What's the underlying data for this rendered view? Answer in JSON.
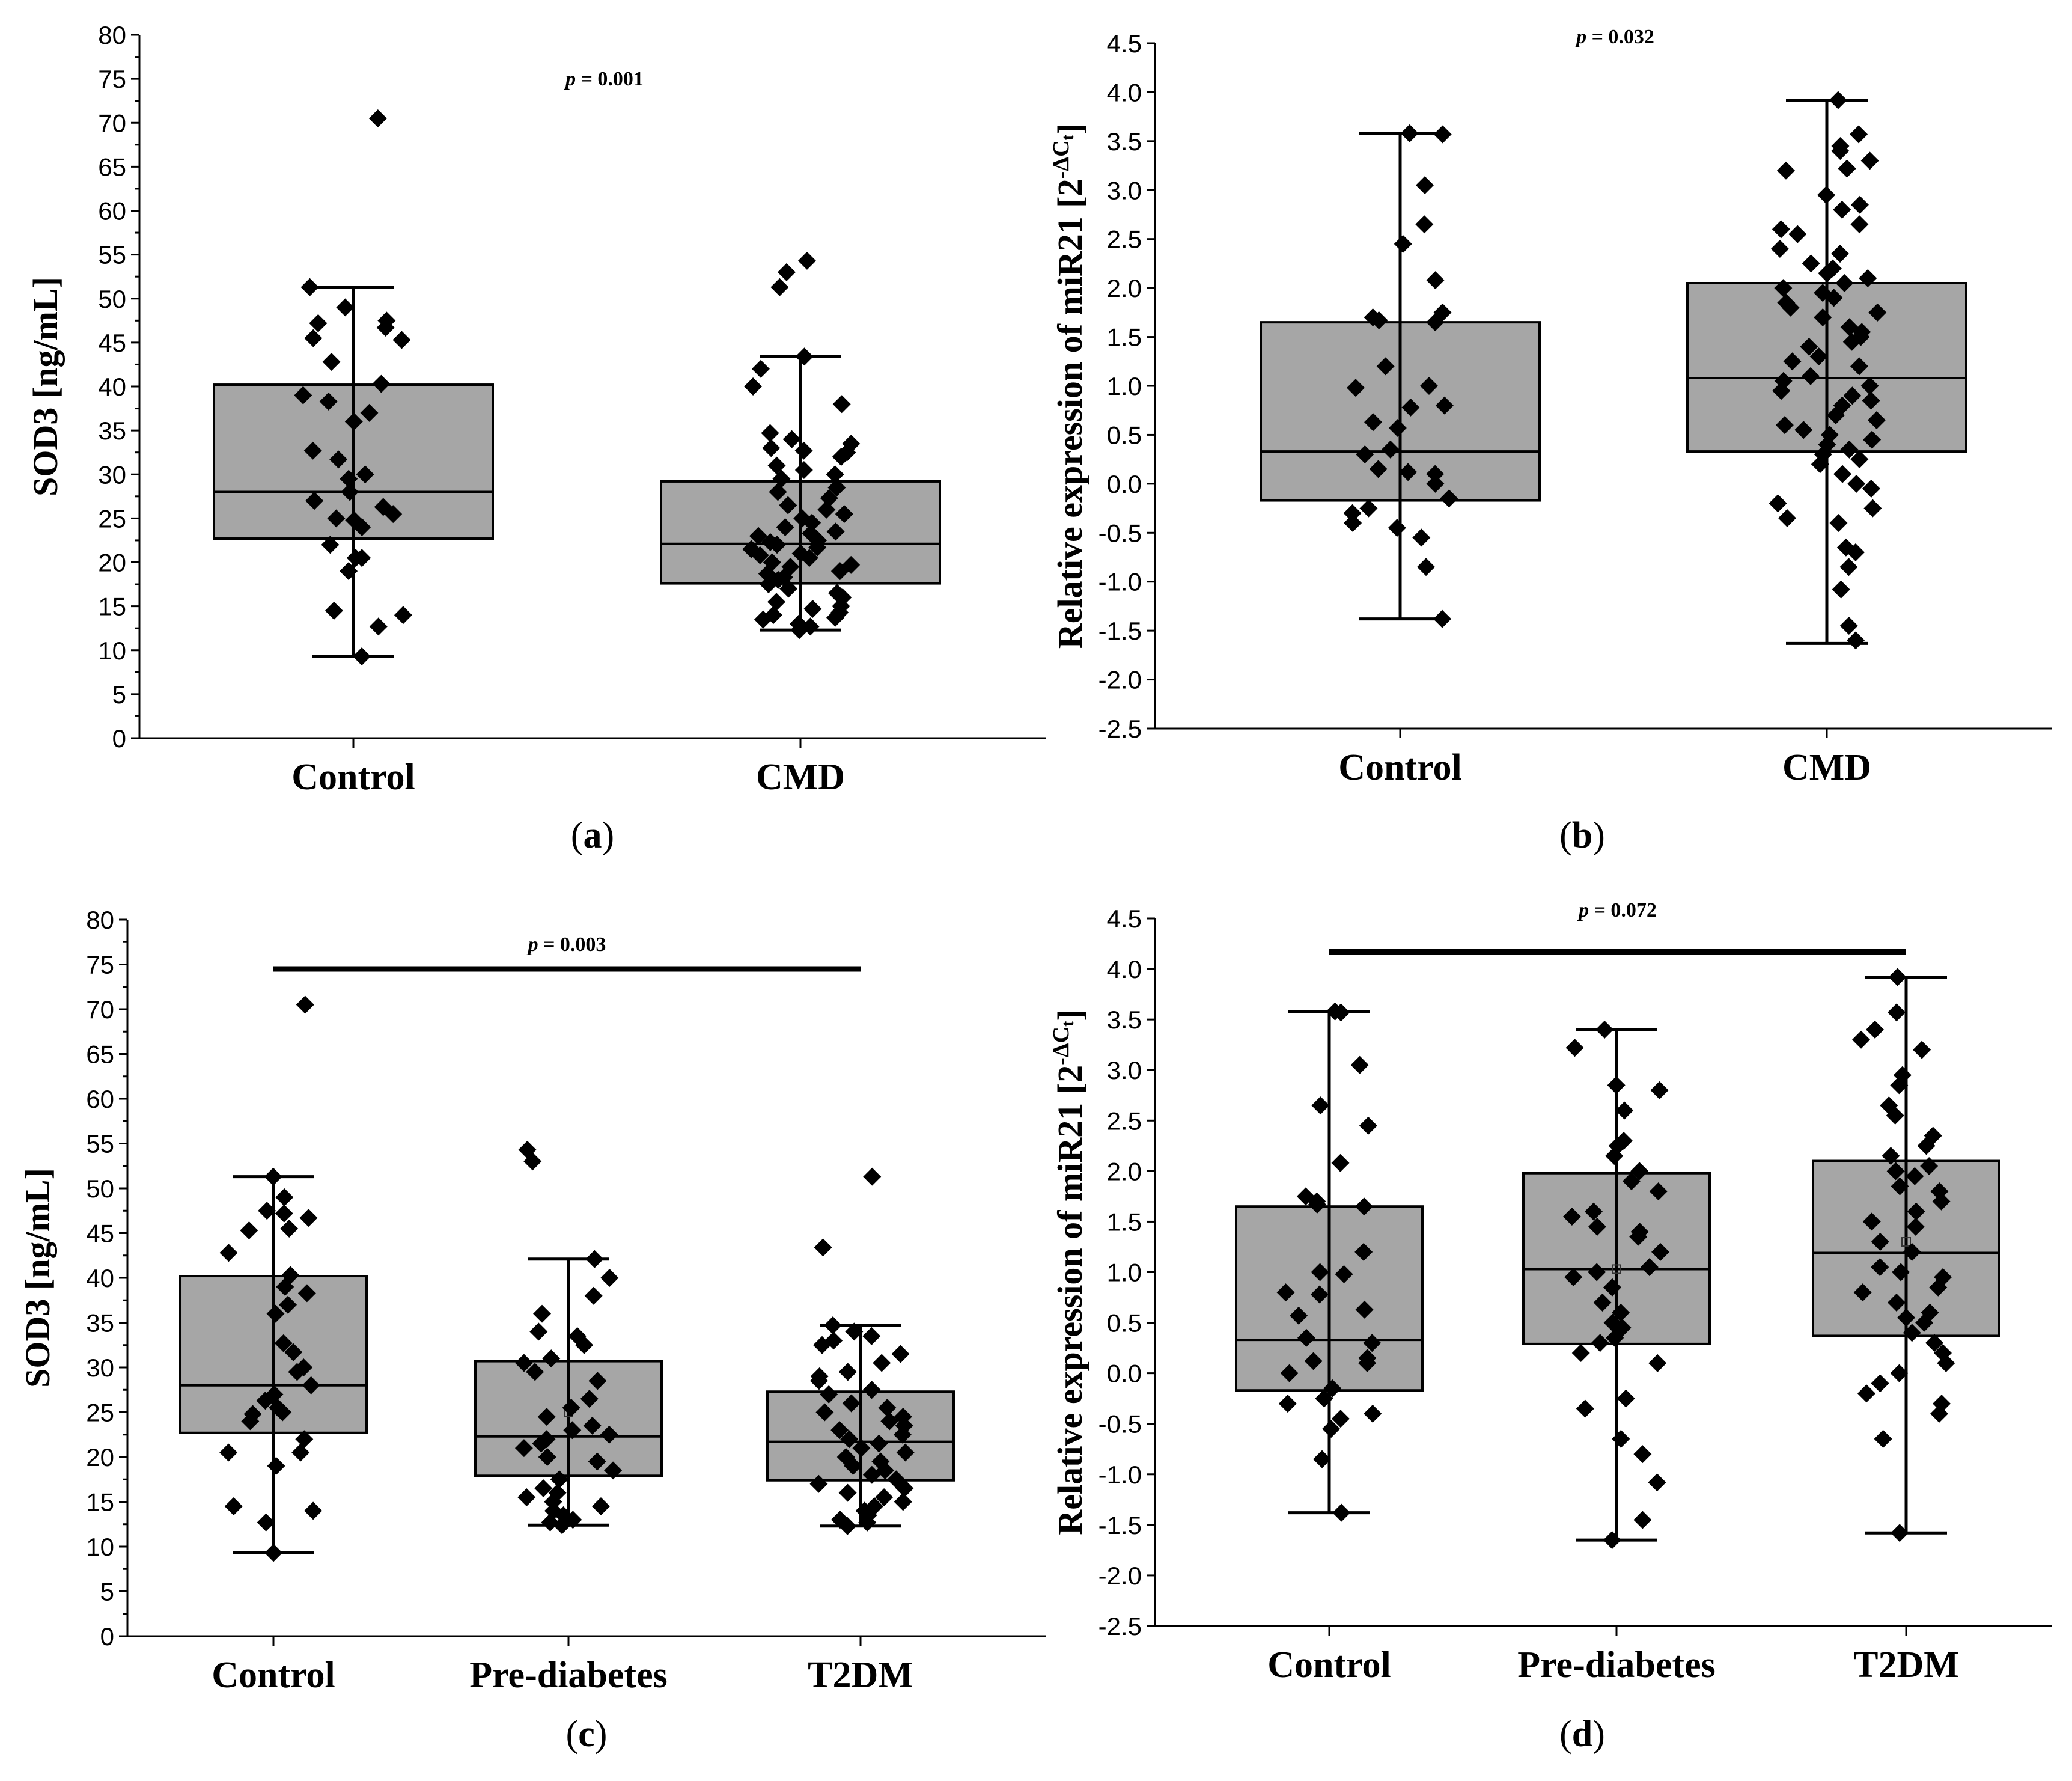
{
  "chart_data": [
    {
      "type": "box",
      "panel": "(a)",
      "ylabel": "SOD3 [ng/mL]",
      "ylim": [
        0,
        80
      ],
      "yticks": [
        0,
        5,
        10,
        15,
        20,
        25,
        30,
        35,
        40,
        45,
        50,
        55,
        60,
        65,
        70,
        75,
        80
      ],
      "ytick_labels": [
        "0",
        "5",
        "10",
        "15",
        "20",
        "25",
        "30",
        "35",
        "40",
        "45",
        "50",
        "55",
        "60",
        "65",
        "70",
        "75",
        "80"
      ],
      "minor_ticks": true,
      "p_text": "p = 0.001",
      "sig_bar": false,
      "categories": [
        "Control",
        "CMD"
      ],
      "boxes": [
        {
          "q1": 22.7,
          "median": 28.0,
          "q3": 40.2,
          "whisker_low": 9.3,
          "whisker_high": 51.3,
          "points": [
            70.5,
            51.3,
            49.0,
            47.5,
            47.2,
            46.7,
            45.5,
            45.3,
            42.8,
            40.3,
            39.0,
            38.3,
            37.0,
            36.0,
            32.7,
            31.7,
            30.0,
            29.5,
            28.0,
            27.0,
            26.3,
            25.5,
            25.0,
            24.8,
            24.0,
            22.0,
            20.5,
            20.5,
            19.0,
            14.5,
            14.0,
            12.7,
            9.3
          ]
        },
        {
          "q1": 17.6,
          "median": 22.1,
          "q3": 29.2,
          "whisker_low": 12.3,
          "whisker_high": 43.4,
          "points": [
            54.3,
            53.0,
            51.3,
            43.4,
            42.0,
            40.0,
            38.0,
            34.7,
            34.0,
            33.5,
            33.0,
            32.7,
            32.5,
            32.0,
            31.0,
            30.5,
            30.0,
            29.5,
            28.5,
            28.0,
            27.3,
            26.5,
            26.0,
            25.5,
            25.0,
            24.5,
            24.0,
            23.5,
            23.3,
            23.0,
            22.5,
            22.3,
            22.0,
            21.7,
            21.5,
            21.0,
            20.8,
            20.5,
            20.0,
            19.7,
            19.5,
            19.0,
            18.7,
            18.3,
            18.0,
            17.5,
            17.0,
            16.5,
            16.0,
            15.5,
            15.0,
            14.7,
            14.3,
            14.0,
            13.7,
            13.5,
            13.0,
            12.7,
            12.3
          ]
        }
      ]
    },
    {
      "type": "box",
      "panel": "(b)",
      "ylabel": "Relative expression of miR21 [2-ΔCt]",
      "ylim": [
        -2.5,
        4.5
      ],
      "yticks": [
        -2.5,
        -2.0,
        -1.5,
        -1.0,
        -0.5,
        0.0,
        0.5,
        1.0,
        1.5,
        2.0,
        2.5,
        3.0,
        3.5,
        4.0,
        4.5
      ],
      "ytick_labels": [
        "-2.5",
        "-2.0",
        "-1.5",
        "-1.0",
        "-0.5",
        "0.0",
        "0.5",
        "1.0",
        "1.5",
        "2.0",
        "2.5",
        "3.0",
        "3.5",
        "4.0",
        "4.5"
      ],
      "minor_ticks": false,
      "p_text": "p = 0.032",
      "sig_bar": false,
      "categories": [
        "Control",
        "CMD"
      ],
      "boxes": [
        {
          "q1": -0.17,
          "median": 0.33,
          "q3": 1.65,
          "whisker_low": -1.38,
          "whisker_high": 3.58,
          "points": [
            3.58,
            3.57,
            3.05,
            2.65,
            2.45,
            2.08,
            1.75,
            1.7,
            1.67,
            1.65,
            1.2,
            1.0,
            0.98,
            0.8,
            0.78,
            0.63,
            0.57,
            0.35,
            0.3,
            0.15,
            0.12,
            0.1,
            0.0,
            -0.15,
            -0.25,
            -0.3,
            -0.4,
            -0.45,
            -0.55,
            -0.85,
            -1.38
          ]
        },
        {
          "q1": 0.33,
          "median": 1.08,
          "q3": 2.05,
          "whisker_low": -1.63,
          "whisker_high": 3.92,
          "points": [
            3.92,
            3.57,
            3.45,
            3.4,
            3.3,
            3.22,
            3.2,
            2.95,
            2.85,
            2.8,
            2.65,
            2.6,
            2.55,
            2.4,
            2.35,
            2.25,
            2.2,
            2.15,
            2.1,
            2.05,
            2.0,
            1.95,
            1.9,
            1.85,
            1.8,
            1.75,
            1.7,
            1.6,
            1.55,
            1.5,
            1.45,
            1.4,
            1.3,
            1.25,
            1.2,
            1.1,
            1.05,
            1.0,
            0.95,
            0.9,
            0.85,
            0.8,
            0.7,
            0.65,
            0.6,
            0.55,
            0.5,
            0.45,
            0.4,
            0.35,
            0.3,
            0.25,
            0.2,
            0.1,
            0.0,
            -0.05,
            -0.2,
            -0.25,
            -0.35,
            -0.4,
            -0.65,
            -0.7,
            -0.85,
            -1.08,
            -1.45,
            -1.6
          ]
        }
      ]
    },
    {
      "type": "box",
      "panel": "(c)",
      "ylabel": "SOD3 [ng/mL]",
      "ylim": [
        0,
        80
      ],
      "yticks": [
        0,
        5,
        10,
        15,
        20,
        25,
        30,
        35,
        40,
        45,
        50,
        55,
        60,
        65,
        70,
        75,
        80
      ],
      "ytick_labels": [
        "0",
        "5",
        "10",
        "15",
        "20",
        "25",
        "30",
        "35",
        "40",
        "45",
        "50",
        "55",
        "60",
        "65",
        "70",
        "75",
        "80"
      ],
      "minor_ticks": true,
      "p_text": "p = 0.003",
      "sig_bar": true,
      "sig_bar_y": 74.5,
      "categories": [
        "Control",
        "Pre-diabetes",
        "T2DM"
      ],
      "boxes": [
        {
          "q1": 22.7,
          "median": 28.0,
          "q3": 40.2,
          "whisker_low": 9.3,
          "whisker_high": 51.3,
          "points": [
            70.5,
            51.3,
            49.0,
            47.5,
            47.2,
            46.7,
            45.5,
            45.3,
            42.8,
            40.3,
            39.0,
            38.3,
            37.0,
            36.0,
            32.7,
            31.7,
            30.0,
            29.5,
            28.0,
            27.0,
            26.3,
            25.5,
            25.0,
            24.8,
            24.0,
            22.0,
            20.5,
            20.5,
            19.0,
            14.5,
            14.0,
            12.7,
            9.3
          ]
        },
        {
          "q1": 17.9,
          "median": 22.3,
          "q3": 30.7,
          "whisker_low": 12.4,
          "whisker_high": 42.1,
          "mean": 25.0,
          "points": [
            54.3,
            53.0,
            42.1,
            40.0,
            38.0,
            36.0,
            34.0,
            33.5,
            32.5,
            31.0,
            30.5,
            29.5,
            28.5,
            26.5,
            25.5,
            24.5,
            23.5,
            23.0,
            22.5,
            22.0,
            21.5,
            21.0,
            20.0,
            19.5,
            18.5,
            17.5,
            16.5,
            16.0,
            15.5,
            15.0,
            14.5,
            14.0,
            13.5,
            13.0,
            12.7,
            12.4
          ]
        },
        {
          "q1": 17.4,
          "median": 21.7,
          "q3": 27.3,
          "whisker_low": 12.3,
          "whisker_high": 34.7,
          "points": [
            51.3,
            43.4,
            34.7,
            34.0,
            33.5,
            33.0,
            32.5,
            31.5,
            30.5,
            29.5,
            29.0,
            28.5,
            27.5,
            27.0,
            26.0,
            25.5,
            25.0,
            24.5,
            24.0,
            23.5,
            23.0,
            22.5,
            22.0,
            21.5,
            21.0,
            20.5,
            20.0,
            19.5,
            19.0,
            18.5,
            18.0,
            17.5,
            17.0,
            16.5,
            16.0,
            15.5,
            15.0,
            14.5,
            14.0,
            13.5,
            13.0,
            12.7,
            12.3
          ]
        }
      ]
    },
    {
      "type": "box",
      "panel": "(d)",
      "ylabel": "Relative expression of miR21 [2-ΔCt]",
      "ylim": [
        -2.5,
        4.5
      ],
      "yticks": [
        -2.5,
        -2.0,
        -1.5,
        -1.0,
        -0.5,
        0.0,
        0.5,
        1.0,
        1.5,
        2.0,
        2.5,
        3.0,
        3.5,
        4.0,
        4.5
      ],
      "ytick_labels": [
        "-2.5",
        "-2.0",
        "-1.5",
        "-1.0",
        "-0.5",
        "0.0",
        "0.5",
        "1.0",
        "1.5",
        "2.0",
        "2.5",
        "3.0",
        "3.5",
        "4.0",
        "4.5"
      ],
      "minor_ticks": false,
      "p_text": "p = 0.072",
      "sig_bar": true,
      "sig_bar_y": 4.17,
      "categories": [
        "Control",
        "Pre-diabetes",
        "T2DM"
      ],
      "boxes": [
        {
          "q1": -0.17,
          "median": 0.33,
          "q3": 1.65,
          "whisker_low": -1.38,
          "whisker_high": 3.58,
          "points": [
            3.58,
            3.57,
            3.05,
            2.65,
            2.45,
            2.08,
            1.75,
            1.7,
            1.67,
            1.65,
            1.2,
            1.0,
            0.98,
            0.8,
            0.78,
            0.63,
            0.57,
            0.35,
            0.3,
            0.15,
            0.12,
            0.1,
            0.0,
            -0.15,
            -0.25,
            -0.3,
            -0.4,
            -0.45,
            -0.55,
            -0.85,
            -1.38
          ]
        },
        {
          "q1": 0.29,
          "median": 1.03,
          "q3": 1.98,
          "whisker_low": -1.65,
          "whisker_high": 3.4,
          "mean": 1.03,
          "points": [
            3.4,
            3.22,
            2.85,
            2.8,
            2.6,
            2.3,
            2.25,
            2.15,
            2.0,
            1.9,
            1.8,
            1.6,
            1.55,
            1.45,
            1.4,
            1.35,
            1.2,
            1.05,
            1.0,
            0.95,
            0.85,
            0.7,
            0.6,
            0.5,
            0.45,
            0.35,
            0.3,
            0.2,
            0.1,
            -0.25,
            -0.35,
            -0.65,
            -0.8,
            -1.08,
            -1.45,
            -1.65
          ]
        },
        {
          "q1": 0.37,
          "median": 1.19,
          "q3": 2.1,
          "whisker_low": -1.58,
          "whisker_high": 3.92,
          "mean": 1.3,
          "points": [
            3.92,
            3.57,
            3.4,
            3.3,
            3.2,
            2.95,
            2.85,
            2.65,
            2.55,
            2.35,
            2.25,
            2.15,
            2.05,
            2.0,
            1.95,
            1.85,
            1.8,
            1.7,
            1.6,
            1.5,
            1.45,
            1.3,
            1.2,
            1.05,
            1.0,
            0.95,
            0.85,
            0.8,
            0.7,
            0.6,
            0.55,
            0.5,
            0.4,
            0.3,
            0.2,
            0.1,
            0.0,
            -0.1,
            -0.2,
            -0.3,
            -0.4,
            -0.65,
            -1.58
          ]
        }
      ]
    }
  ]
}
